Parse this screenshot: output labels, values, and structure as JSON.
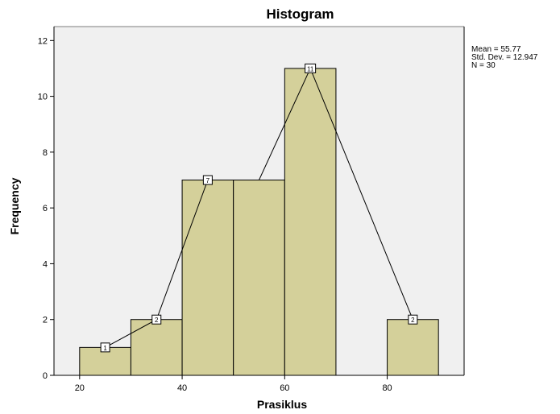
{
  "chart_data": {
    "type": "bar",
    "title": "Histogram",
    "xlabel": "Prasiklus",
    "ylabel": "Frequency",
    "bins": [
      {
        "start": 20,
        "end": 30,
        "count": 1
      },
      {
        "start": 30,
        "end": 40,
        "count": 2
      },
      {
        "start": 40,
        "end": 50,
        "count": 7
      },
      {
        "start": 50,
        "end": 60,
        "count": 7
      },
      {
        "start": 60,
        "end": 70,
        "count": 11
      },
      {
        "start": 70,
        "end": 80,
        "count": 0
      },
      {
        "start": 80,
        "end": 90,
        "count": 2
      }
    ],
    "polygon_points": [
      {
        "x": 25,
        "y": 1,
        "label": "1"
      },
      {
        "x": 35,
        "y": 2,
        "label": "2"
      },
      {
        "x": 45,
        "y": 7,
        "label": "7"
      },
      {
        "x": 55,
        "y": 7,
        "label": ""
      },
      {
        "x": 65,
        "y": 11,
        "label": "11"
      },
      {
        "x": 85,
        "y": 2,
        "label": "2"
      }
    ],
    "xlim": [
      15,
      95
    ],
    "ylim": [
      0,
      12.5
    ],
    "x_ticks": [
      20,
      40,
      60,
      80
    ],
    "y_ticks": [
      0,
      2,
      4,
      6,
      8,
      10,
      12
    ],
    "stats": {
      "mean": "Mean = 55.77",
      "std_dev": "Std. Dev. = 12.947",
      "n": "N = 30"
    },
    "colors": {
      "bar_fill": "#d4d09a",
      "bar_stroke": "#000000",
      "plot_background": "#f0f0f0",
      "line": "#000000"
    },
    "grid": false,
    "legend": "none"
  }
}
